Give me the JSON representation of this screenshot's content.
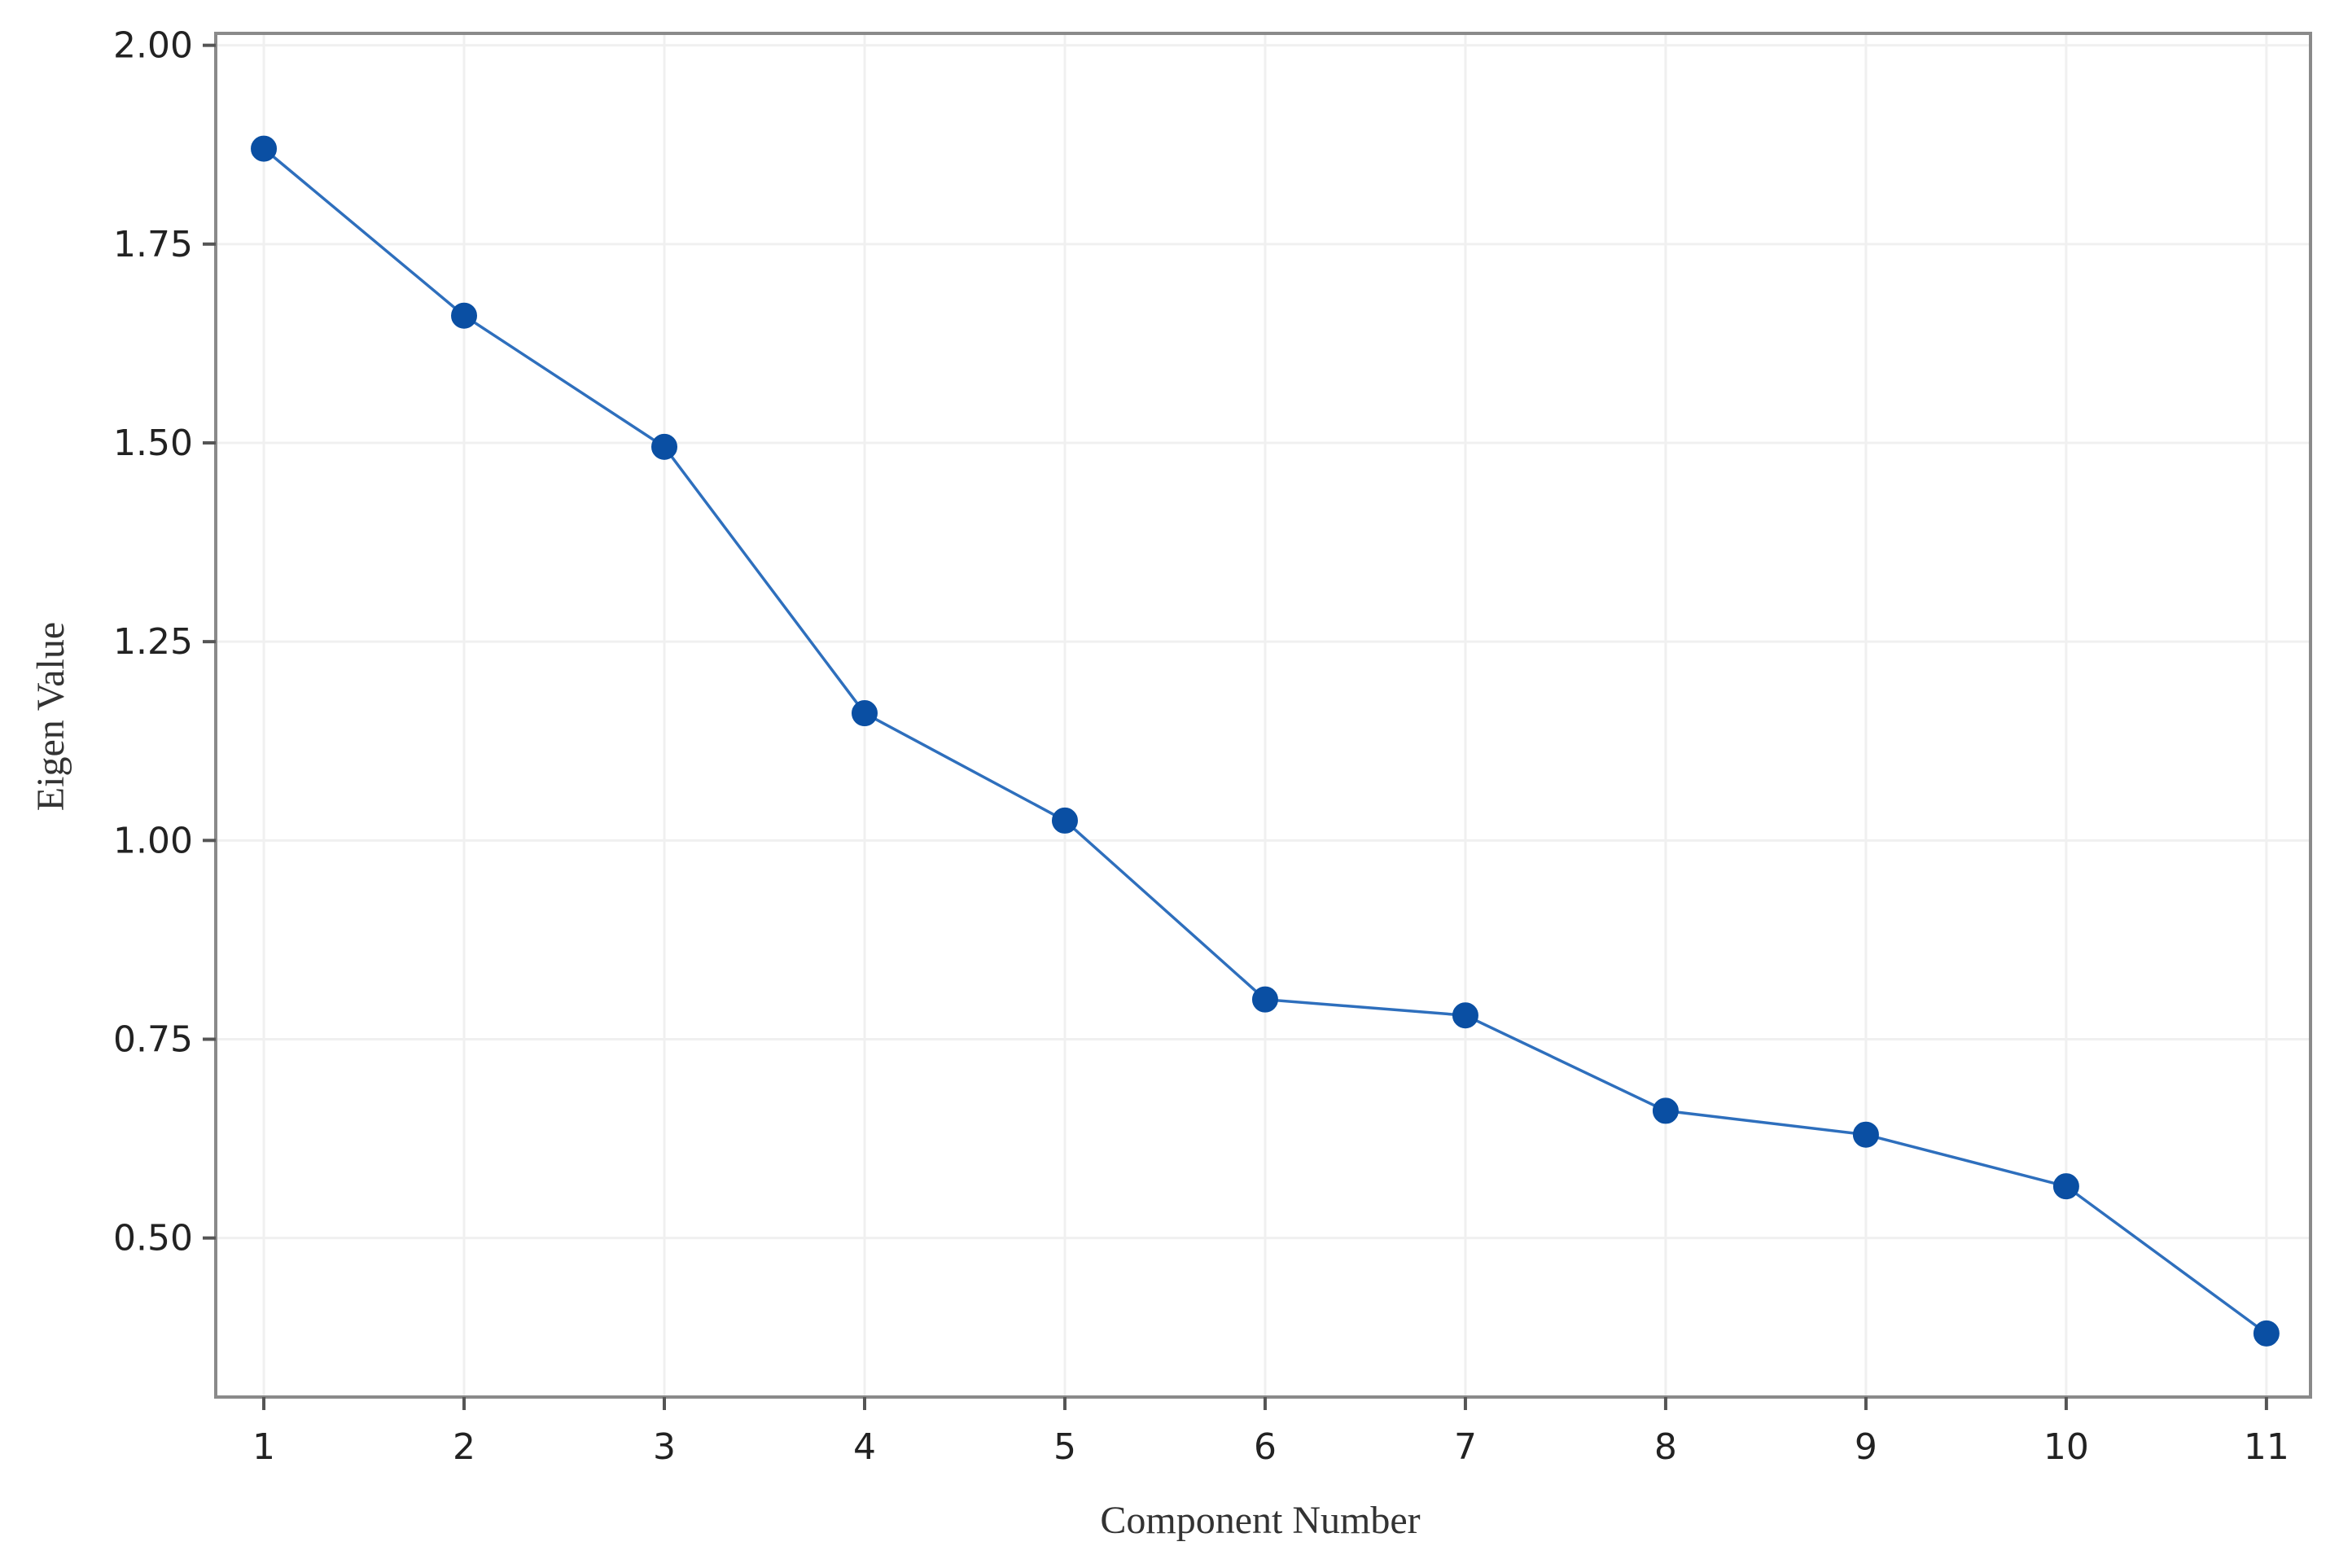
{
  "chart_data": {
    "type": "line",
    "title": "",
    "xlabel": "Component Number",
    "ylabel": "Eigen Value",
    "x": [
      1,
      2,
      3,
      4,
      5,
      6,
      7,
      8,
      9,
      10,
      11
    ],
    "series": [
      {
        "values": [
          1.87,
          1.66,
          1.495,
          1.16,
          1.025,
          0.8,
          0.78,
          0.66,
          0.63,
          0.565,
          0.38
        ]
      }
    ],
    "xticks": [
      "1",
      "2",
      "3",
      "4",
      "5",
      "6",
      "7",
      "8",
      "9",
      "10",
      "11"
    ],
    "yticks": [
      "0.50",
      "0.75",
      "1.00",
      "1.25",
      "1.50",
      "1.75",
      "2.00"
    ],
    "xlim": [
      0.76,
      11.22
    ],
    "ylim": [
      0.3,
      2.015
    ],
    "grid": true,
    "legend": "none",
    "colors": {
      "series": "#0a4fa3",
      "line": "#2e6fbd",
      "grid": "#f0f0f0",
      "frame": "#8a8a8a"
    }
  }
}
